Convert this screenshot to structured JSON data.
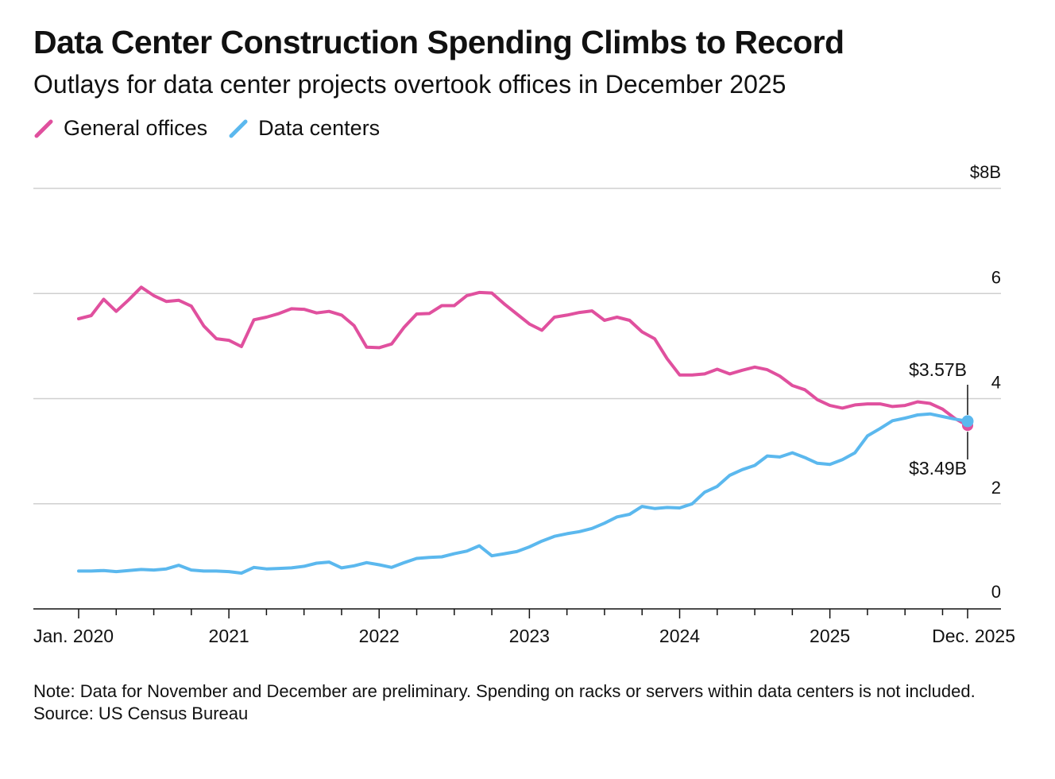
{
  "title": "Data Center Construction Spending Climbs to Record",
  "subtitle": "Outlays for data center projects overtook offices in December 2025",
  "legend": [
    {
      "name": "General offices",
      "color": "#E0509E",
      "icon": "slash-line-icon"
    },
    {
      "name": "Data centers",
      "color": "#5BB8EE",
      "icon": "slash-line-icon"
    }
  ],
  "chart_data": {
    "type": "line",
    "title": "Data Center Construction Spending Climbs to Record",
    "subtitle": "Outlays for data center projects overtook offices in December 2025",
    "x_start": "Jan. 2020",
    "x_end": "Dec. 2025",
    "x_tick_labels": [
      "Jan. 2020",
      "2021",
      "2022",
      "2023",
      "2024",
      "2025",
      "Dec. 2025"
    ],
    "y_tick_labels": [
      "$8B",
      "6",
      "4",
      "2",
      "0"
    ],
    "y_tick_values": [
      8,
      6,
      4,
      2,
      0
    ],
    "ylim": [
      0,
      8
    ],
    "unit": "$B",
    "grid": true,
    "legend_position": "top-left",
    "series": [
      {
        "name": "General offices",
        "color": "#E0509E",
        "values": [
          5.52,
          5.58,
          5.89,
          5.66,
          5.88,
          6.12,
          5.96,
          5.85,
          5.87,
          5.76,
          5.38,
          5.14,
          5.11,
          4.99,
          5.5,
          5.55,
          5.62,
          5.71,
          5.7,
          5.63,
          5.66,
          5.59,
          5.39,
          4.98,
          4.97,
          5.04,
          5.36,
          5.61,
          5.62,
          5.77,
          5.77,
          5.96,
          6.02,
          6.01,
          5.8,
          5.61,
          5.42,
          5.3,
          5.55,
          5.59,
          5.64,
          5.67,
          5.49,
          5.55,
          5.49,
          5.27,
          5.14,
          4.76,
          4.45,
          4.45,
          4.47,
          4.56,
          4.47,
          4.54,
          4.6,
          4.55,
          4.43,
          4.25,
          4.17,
          3.98,
          3.87,
          3.82,
          3.88,
          3.9,
          3.9,
          3.85,
          3.87,
          3.94,
          3.91,
          3.8,
          3.62,
          3.49
        ]
      },
      {
        "name": "Data centers",
        "color": "#5BB8EE",
        "values": [
          0.72,
          0.72,
          0.73,
          0.71,
          0.73,
          0.75,
          0.74,
          0.76,
          0.83,
          0.74,
          0.72,
          0.72,
          0.71,
          0.68,
          0.79,
          0.76,
          0.77,
          0.78,
          0.81,
          0.87,
          0.89,
          0.78,
          0.82,
          0.88,
          0.84,
          0.79,
          0.88,
          0.96,
          0.98,
          0.99,
          1.05,
          1.1,
          1.2,
          1.01,
          1.05,
          1.09,
          1.18,
          1.29,
          1.38,
          1.43,
          1.47,
          1.53,
          1.63,
          1.75,
          1.8,
          1.95,
          1.91,
          1.93,
          1.92,
          2.0,
          2.22,
          2.33,
          2.54,
          2.65,
          2.73,
          2.91,
          2.89,
          2.97,
          2.88,
          2.77,
          2.75,
          2.84,
          2.97,
          3.29,
          3.43,
          3.58,
          3.63,
          3.69,
          3.71,
          3.66,
          3.61,
          3.57
        ]
      }
    ],
    "annotations": [
      {
        "series": "Data centers",
        "label": "$3.57B",
        "value": 3.57
      },
      {
        "series": "General offices",
        "label": "$3.49B",
        "value": 3.49
      }
    ]
  },
  "footer": {
    "note": "Note: Data for November and December are preliminary. Spending on racks or servers within data centers is not included.",
    "source": "Source: US Census Bureau"
  }
}
